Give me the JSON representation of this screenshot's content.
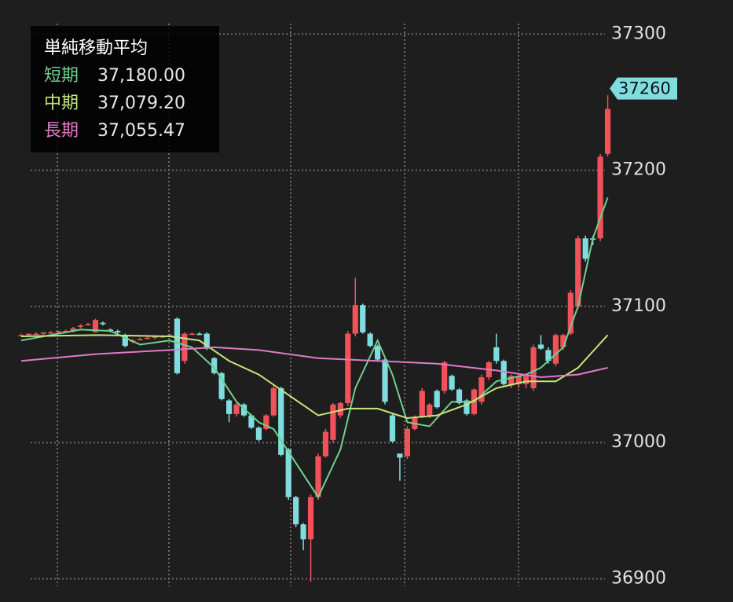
{
  "chart_data": {
    "type": "candlestick",
    "legend": {
      "title": "単純移動平均",
      "items": [
        {
          "name": "短期",
          "value_label": "37,180.00"
        },
        {
          "name": "中期",
          "value_label": "37,079.20"
        },
        {
          "name": "長期",
          "value_label": "37,055.47"
        }
      ]
    },
    "ylim": [
      36883,
      37325
    ],
    "yticks": [
      36900,
      37000,
      37100,
      37200,
      37300
    ],
    "current_price": 37260,
    "up_color": "#f0525a",
    "down_color": "#7fdde0",
    "open": [
      37079,
      37079,
      37080,
      37080,
      37081,
      37081,
      37082,
      37082,
      37085,
      37087,
      37081,
      37088,
      37083,
      37082,
      37079,
      37074,
      37076,
      37077,
      37077,
      37078,
      37079,
      37091,
      37060,
      37080,
      37080,
      37080,
      37062,
      37051,
      37031,
      37021,
      37028,
      37020,
      37011,
      37010,
      37020,
      37040,
      36995,
      36960,
      36940,
      36929,
      36960,
      36990,
      37002,
      37020,
      37029,
      37080,
      37101,
      37080,
      37071,
      37061,
      37020,
      36992,
      36990,
      37010,
      37019,
      37020,
      37038,
      37038,
      37049,
      37039,
      37031,
      37021,
      37030,
      37048,
      37070,
      37060,
      37042,
      37043,
      37043,
      37040,
      37072,
      37068,
      37058,
      37070,
      37080,
      37100,
      37150,
      37150,
      37150,
      37212
    ],
    "high": [
      37080,
      37080,
      37081,
      37081,
      37082,
      37082,
      37083,
      37085,
      37087,
      37088,
      37091,
      37089,
      37084,
      37083,
      37080,
      37076,
      37077,
      37078,
      37078,
      37079,
      37080,
      37092,
      37081,
      37081,
      37081,
      37081,
      37063,
      37052,
      37032,
      37029,
      37029,
      37021,
      37012,
      37021,
      37042,
      37041,
      36996,
      36961,
      36941,
      36962,
      36992,
      37010,
      37029,
      37030,
      37082,
      37121,
      37102,
      37081,
      37072,
      37062,
      37021,
      36992,
      37012,
      37020,
      37040,
      37029,
      37039,
      37060,
      37050,
      37040,
      37032,
      37040,
      37050,
      37060,
      37080,
      37061,
      37050,
      37050,
      37050,
      37072,
      37079,
      37070,
      37080,
      37080,
      37112,
      37152,
      37152,
      37152,
      37212,
      37255
    ],
    "low": [
      37078,
      37078,
      37079,
      37079,
      37080,
      37080,
      37081,
      37081,
      37084,
      37086,
      37081,
      37086,
      37081,
      37080,
      37070,
      37073,
      37075,
      37076,
      37076,
      37077,
      37078,
      37050,
      37058,
      37079,
      37079,
      37068,
      37050,
      37031,
      37015,
      37019,
      37019,
      37010,
      37001,
      37009,
      37019,
      36990,
      36958,
      36938,
      36921,
      36898,
      36958,
      36989,
      37000,
      37018,
      37027,
      37078,
      37080,
      37070,
      37060,
      37028,
      37000,
      36972,
      36988,
      37009,
      37018,
      37018,
      37025,
      37036,
      37038,
      37028,
      37020,
      37020,
      37028,
      37046,
      37058,
      37042,
      37040,
      37040,
      37040,
      37038,
      37068,
      37058,
      37056,
      37068,
      37079,
      37098,
      37133,
      37145,
      37148,
      37210
    ],
    "close": [
      37079,
      37080,
      37080,
      37081,
      37081,
      37082,
      37082,
      37084,
      37086,
      37087,
      37090,
      37087,
      37082,
      37081,
      37071,
      37075,
      37076,
      37077,
      37078,
      37078,
      37079,
      37051,
      37080,
      37080,
      37079,
      37069,
      37051,
      37032,
      37021,
      37028,
      37020,
      37011,
      37002,
      37020,
      37040,
      36991,
      36960,
      36940,
      36929,
      36960,
      36990,
      37008,
      37028,
      37029,
      37080,
      37101,
      37081,
      37071,
      37061,
      37030,
      37001,
      36989,
      37010,
      37019,
      37038,
      37028,
      37026,
      37059,
      37039,
      37029,
      37021,
      37039,
      37048,
      37059,
      37060,
      37043,
      37049,
      37049,
      37049,
      37070,
      37069,
      37060,
      37079,
      37079,
      37110,
      37150,
      37135,
      37149,
      37210,
      37245
    ],
    "series": [
      {
        "name": "短期",
        "color": "#6fd08c",
        "x": [
          0,
          8,
          12,
          16,
          20,
          23,
          26,
          29,
          32,
          34,
          37,
          40,
          43,
          45,
          48,
          50,
          52,
          55,
          58,
          61,
          64,
          68,
          70,
          73,
          75,
          77,
          79
        ],
        "values": [
          37075,
          37083,
          37082,
          37072,
          37075,
          37070,
          37055,
          37030,
          37015,
          37010,
          36985,
          36960,
          36995,
          37040,
          37075,
          37050,
          37015,
          37012,
          37030,
          37030,
          37045,
          37050,
          37055,
          37070,
          37100,
          37150,
          37180
        ]
      },
      {
        "name": "中期",
        "color": "#c6e67a",
        "x": [
          0,
          10,
          20,
          24,
          28,
          32,
          36,
          40,
          44,
          48,
          52,
          56,
          60,
          64,
          68,
          72,
          75,
          79
        ],
        "values": [
          37078,
          37079,
          37078,
          37075,
          37060,
          37050,
          37035,
          37020,
          37025,
          37025,
          37018,
          37020,
          37028,
          37040,
          37045,
          37045,
          37055,
          37079
        ]
      },
      {
        "name": "長期",
        "color": "#e07ac8",
        "x": [
          0,
          10,
          20,
          26,
          32,
          40,
          48,
          56,
          64,
          70,
          75,
          79
        ],
        "values": [
          37060,
          37065,
          37068,
          37070,
          37068,
          37062,
          37060,
          37058,
          37053,
          37048,
          37050,
          37055
        ]
      }
    ]
  }
}
